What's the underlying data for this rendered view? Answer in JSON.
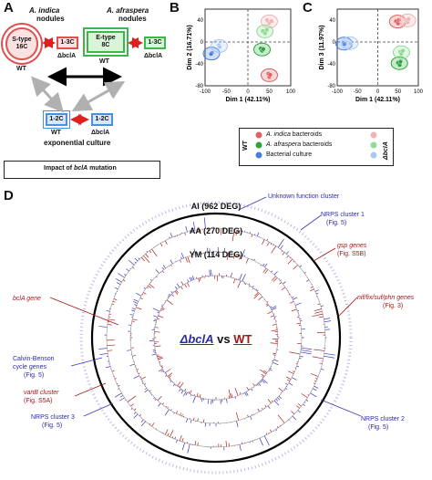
{
  "panels": {
    "a": "A",
    "b": "B",
    "c": "C",
    "d": "D"
  },
  "panel_a": {
    "indica_title": "A. indica",
    "indica_sub": "nodules",
    "afraspera_title": "A. afraspera",
    "afraspera_sub": "nodules",
    "stype_label": "S-type\n16C",
    "wt_label_1": "WT",
    "box_13c_1": "1-3C",
    "dbcla_1": "ΔbclA",
    "etype_label": "E-type\n8C",
    "wt_label_2": "WT",
    "box_13c_2": "1-3C",
    "dbcla_2": "ΔbclA",
    "box_12c_1": "1-2C",
    "box_12c_2": "1-2C",
    "wt_label_3": "WT",
    "dbcla_3": "ΔbclA",
    "culture_label": "exponential culture",
    "legend_prefix": "Impact of ",
    "legend_gene": "bclA",
    "legend_suffix": " mutation"
  },
  "chart_data": [
    {
      "type": "scatter",
      "panel": "B",
      "xlabel": "Dim 1 (42.11%)",
      "ylabel": "Dim 2 (16.71%)",
      "xlim": [
        -100,
        100
      ],
      "ylim": [
        -80,
        60
      ],
      "xticks": [
        "-100",
        "-50",
        "0",
        "50",
        "100"
      ],
      "yticks": [
        "40",
        "0",
        "-40",
        "-80"
      ],
      "series": [
        {
          "name": "A. indica bacteroids",
          "genotype": "WT",
          "color": "#e06060",
          "points": [
            [
              48,
              -58
            ],
            [
              50,
              -64
            ],
            [
              52,
              -60
            ]
          ]
        },
        {
          "name": "A. indica bacteroids",
          "genotype": "ΔbclA",
          "color": "#f2b3b3",
          "points": [
            [
              45,
              40
            ],
            [
              50,
              35
            ],
            [
              55,
              38
            ]
          ]
        },
        {
          "name": "A. afraspera bacteroids",
          "genotype": "WT",
          "color": "#2aa63a",
          "points": [
            [
              30,
              -12
            ],
            [
              33,
              -16
            ],
            [
              36,
              -13
            ]
          ]
        },
        {
          "name": "A. afraspera bacteroids",
          "genotype": "ΔbclA",
          "color": "#8fdc95",
          "points": [
            [
              35,
              20
            ],
            [
              40,
              16
            ],
            [
              44,
              22
            ]
          ]
        },
        {
          "name": "Bacterial culture",
          "genotype": "WT",
          "color": "#4a7fe0",
          "points": [
            [
              -84,
              -20
            ],
            [
              -86,
              -22
            ]
          ]
        },
        {
          "name": "Bacterial culture",
          "genotype": "ΔbclA",
          "color": "#a9c8f4",
          "points": [
            [
              -68,
              -6
            ],
            [
              -66,
              -9
            ]
          ]
        }
      ]
    },
    {
      "type": "scatter",
      "panel": "C",
      "xlabel": "Dim 1 (42.11%)",
      "ylabel": "Dim 3 (11.97%)",
      "xlim": [
        -100,
        100
      ],
      "ylim": [
        -80,
        60
      ],
      "xticks": [
        "-100",
        "-50",
        "0",
        "50",
        "100"
      ],
      "yticks": [
        "40",
        "0",
        "-40",
        "-80"
      ],
      "series": [
        {
          "name": "A. indica bacteroids",
          "genotype": "WT",
          "color": "#e06060",
          "points": [
            [
              45,
              38
            ],
            [
              50,
              34
            ],
            [
              52,
              40
            ]
          ]
        },
        {
          "name": "A. indica bacteroids",
          "genotype": "ΔbclA",
          "color": "#f2b3b3",
          "points": [
            [
              70,
              40
            ],
            [
              74,
              36
            ],
            [
              76,
              42
            ]
          ]
        },
        {
          "name": "A. afraspera bacteroids",
          "genotype": "WT",
          "color": "#2aa63a",
          "points": [
            [
              50,
              -38
            ],
            [
              54,
              -42
            ],
            [
              56,
              -36
            ]
          ]
        },
        {
          "name": "A. afraspera bacteroids",
          "genotype": "ΔbclA",
          "color": "#8fdc95",
          "points": [
            [
              55,
              -18
            ],
            [
              58,
              -22
            ],
            [
              62,
              -16
            ]
          ]
        },
        {
          "name": "Bacterial culture",
          "genotype": "WT",
          "color": "#4a7fe0",
          "points": [
            [
              -84,
              -2
            ],
            [
              -82,
              -4
            ]
          ]
        },
        {
          "name": "Bacterial culture",
          "genotype": "ΔbclA",
          "color": "#a9c8f4",
          "points": [
            [
              -70,
              -1
            ],
            [
              -68,
              -3
            ]
          ]
        }
      ]
    },
    {
      "type": "circos",
      "panel": "D",
      "tracks": [
        {
          "label": "AI (962 DEG)"
        },
        {
          "label": "AA (270 DEG)"
        },
        {
          "label": "YM (114 DEG)"
        }
      ],
      "center_text_mutant": "ΔbclA",
      "center_text_vs": " vs ",
      "center_text_wt": "WT"
    }
  ],
  "legend_bc": {
    "wt_label": "WT",
    "mut_label": "ΔbclA",
    "entries": [
      {
        "label": "A. indica bacteroids",
        "italic_part": "A. indica",
        "rest": " bacteroids"
      },
      {
        "label": "A. afraspera bacteroids",
        "italic_part": "A. afraspera",
        "rest": " bacteroids"
      },
      {
        "label": "Bacterial culture",
        "italic_part": "",
        "rest": "Bacterial culture"
      }
    ]
  },
  "annotations": {
    "unknown": "Unknown function cluster",
    "nrps1": "NRPS cluster 1",
    "nrps1_fig": "(Fig. 5)",
    "gsp": "gsp genes",
    "gsp_fig": "(Fig. S5B)",
    "nif": "nif/fix/suf/phn genes",
    "nif_fig": "(Fig. 3)",
    "bcla": "bclA gene",
    "calvin1": "Calvin-Benson",
    "calvin2": "cycle genes",
    "calvin3": "(Fig. 5)",
    "vanb": "vanB cluster",
    "vanb_fig": "(Fig. S5A)",
    "nrps3": "NRPS cluster 3",
    "nrps3_fig": "(Fig. 5)",
    "nrps2": "NRPS cluster 2",
    "nrps2_fig": "(Fig. 5)"
  }
}
